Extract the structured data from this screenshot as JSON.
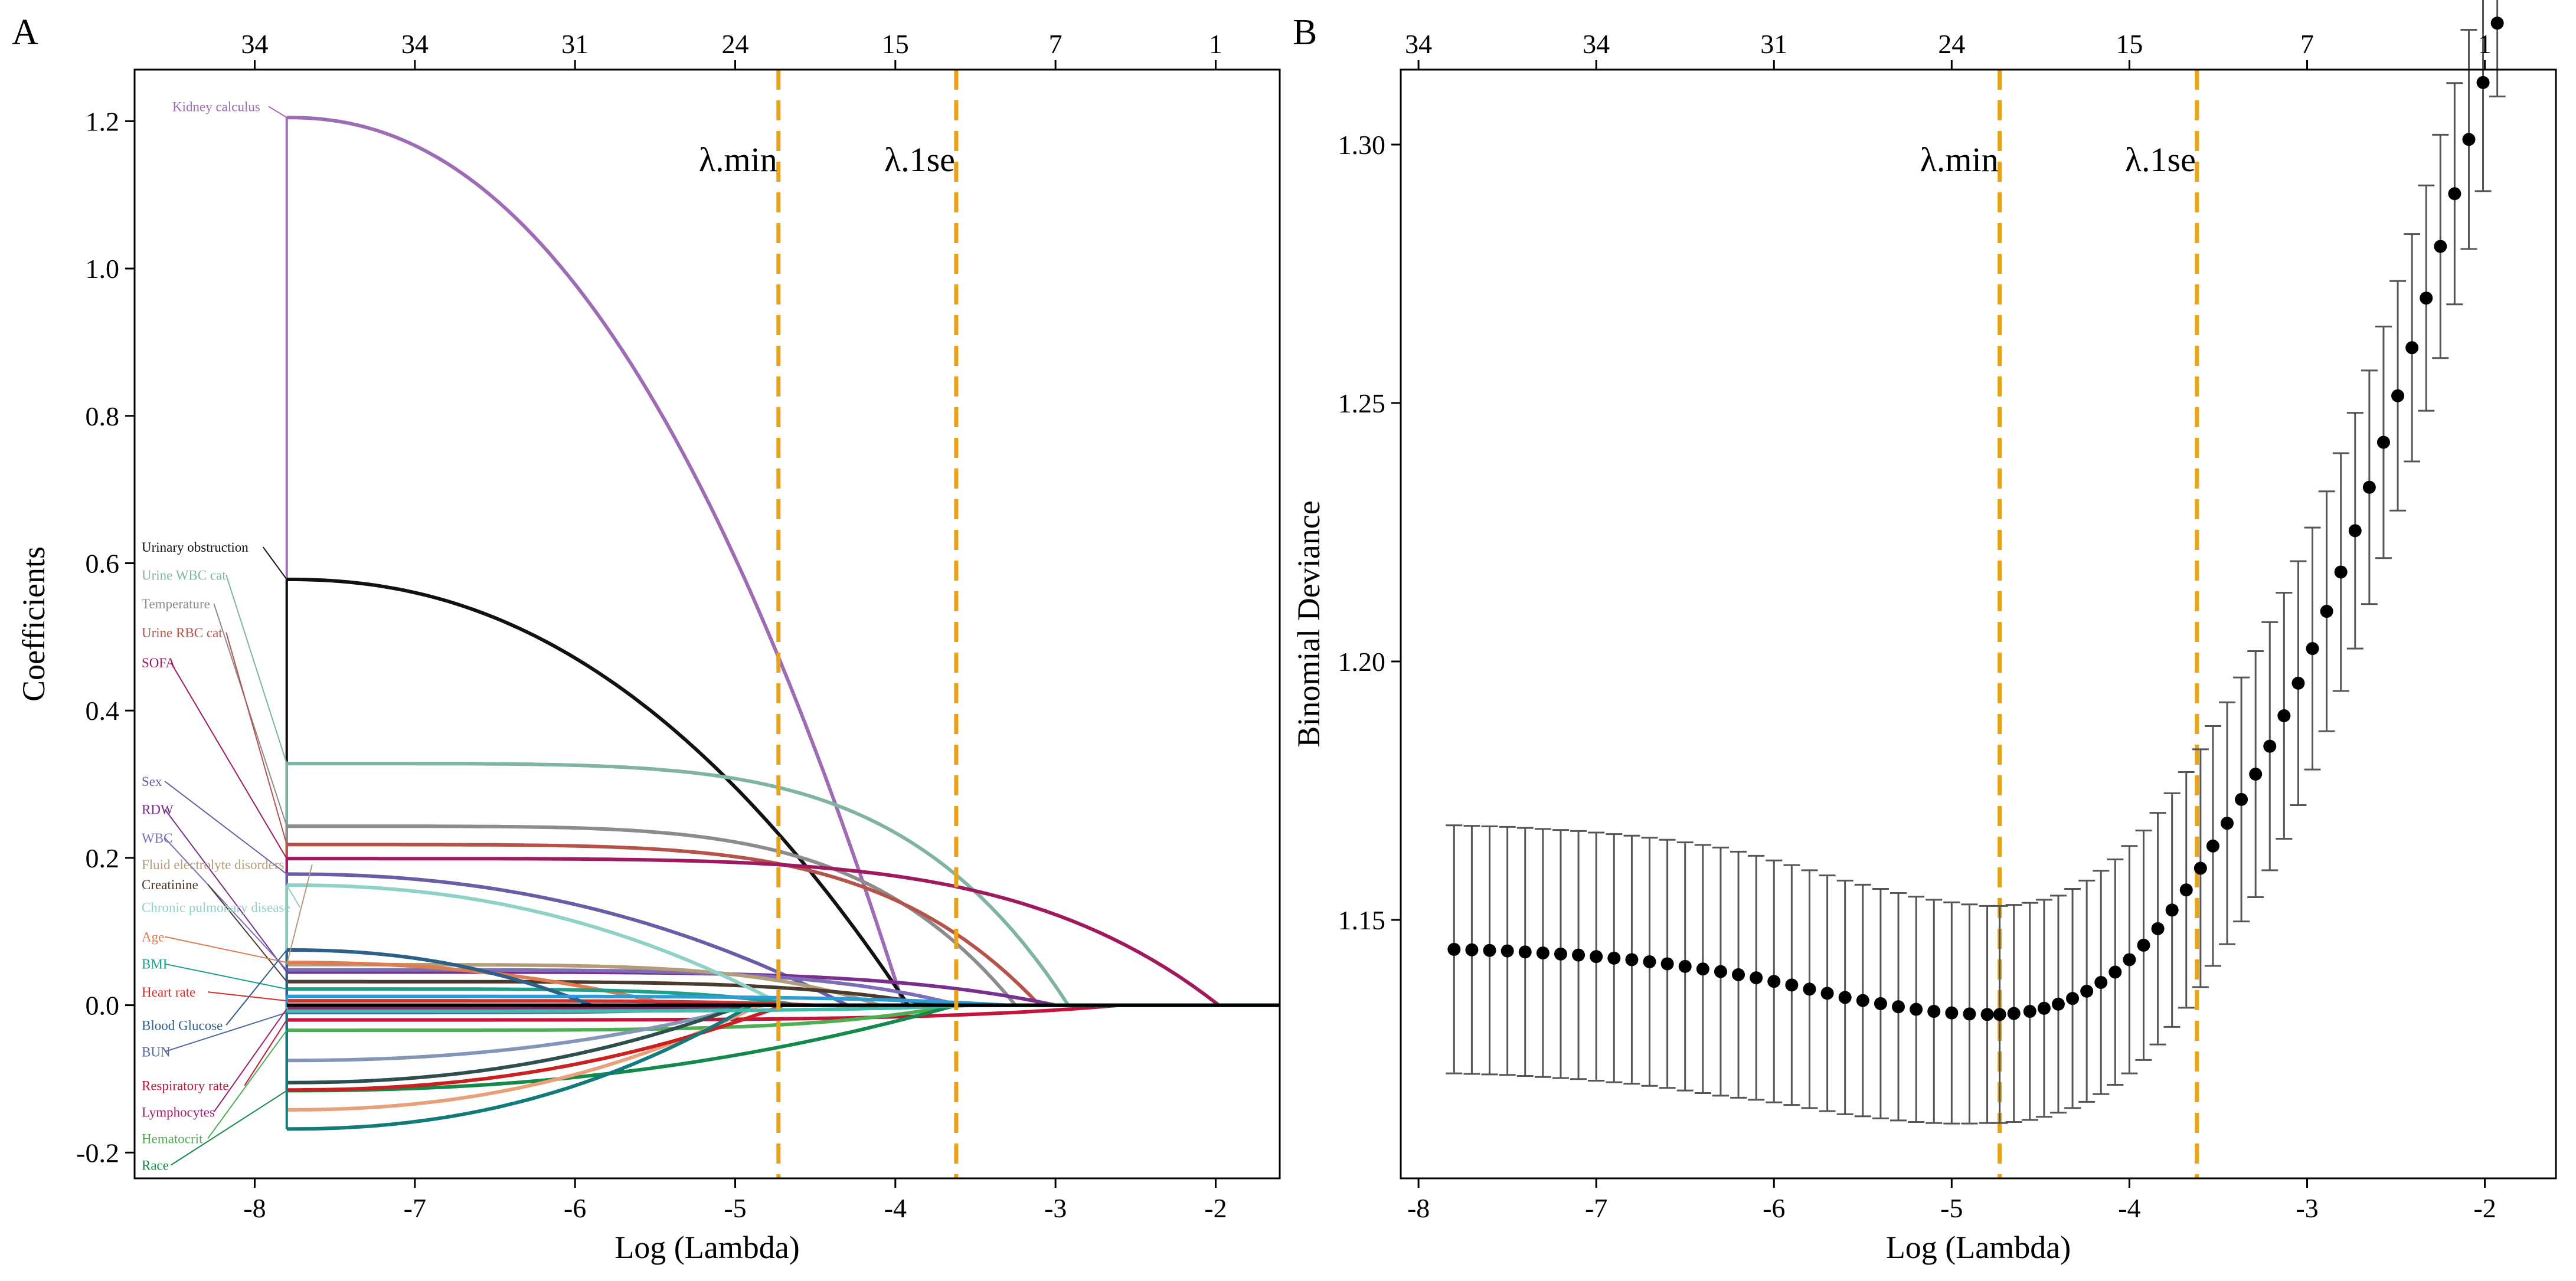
{
  "panels": {
    "a_label": "A",
    "b_label": "B"
  },
  "colors": {
    "lambda_line": "#E8A317",
    "axis": "#000000",
    "errorbar": "#555555",
    "point": "#000000"
  },
  "chart_data": [
    {
      "type": "line",
      "panel": "A",
      "title": "",
      "xlabel": "Log (Lambda)",
      "ylabel": "Coefficients",
      "xlim": [
        -8.75,
        -1.6
      ],
      "ylim": [
        -0.235,
        1.27
      ],
      "x_ticks": [
        -8,
        -7,
        -6,
        -5,
        -4,
        -3,
        -2
      ],
      "x_tick_labels": [
        "-8",
        "-7",
        "-6",
        "-5",
        "-4",
        "-3",
        "-2"
      ],
      "y_ticks": [
        -0.2,
        0.0,
        0.2,
        0.4,
        0.6,
        0.8,
        1.0,
        1.2
      ],
      "y_tick_labels": [
        "-0.2",
        "0.0",
        "0.2",
        "0.4",
        "0.6",
        "0.8",
        "1.0",
        "1.2"
      ],
      "top_ticks": [
        -8,
        -7,
        -6,
        -5,
        -4,
        -3,
        -2
      ],
      "top_tick_labels": [
        "34",
        "34",
        "31",
        "24",
        "15",
        "7",
        "1"
      ],
      "lambda_min": -4.73,
      "lambda_1se": -3.62,
      "lambda_min_label": "λ.min",
      "lambda_1se_label": "λ.1se",
      "x_start": -7.8,
      "x_end": -1.6,
      "series": [
        {
          "name": "Kidney calculus",
          "color": "#9E6BB5",
          "y0": 1.205,
          "x_zero": -3.95,
          "shape": "curve"
        },
        {
          "name": "Urinary obstruction",
          "color": "#111111",
          "y0": 0.578,
          "x_zero": -3.92,
          "shape": "curve"
        },
        {
          "name": "Urine WBC cat",
          "color": "#7FB59E",
          "y0": 0.328,
          "x_zero": -2.92,
          "shape": "flat"
        },
        {
          "name": "Temperature",
          "color": "#8C8C8C",
          "y0": 0.243,
          "x_zero": -3.25,
          "shape": "flat"
        },
        {
          "name": "Urine RBC cat",
          "color": "#B5524A",
          "y0": 0.218,
          "x_zero": -3.1,
          "shape": "flat"
        },
        {
          "name": "SOFA",
          "color": "#A0185E",
          "y0": 0.199,
          "x_zero": -1.98,
          "shape": "flat"
        },
        {
          "name": "Sex",
          "color": "#6A5DA8",
          "y0": 0.178,
          "x_zero": -4.3,
          "shape": "curve"
        },
        {
          "name": "RDW",
          "color": "#7A2F8E",
          "y0": 0.045,
          "x_zero": -3.0,
          "shape": "flat"
        },
        {
          "name": "WBC",
          "color": "#7C6DB8",
          "y0": 0.048,
          "x_zero": -3.6,
          "shape": "flat"
        },
        {
          "name": "Fluid electrolyte disorders",
          "color": "#B39C7A",
          "y0": 0.055,
          "x_zero": -4.1,
          "shape": "flat"
        },
        {
          "name": "Creatinine",
          "color": "#4A3B2E",
          "y0": 0.032,
          "x_zero": -3.75,
          "shape": "flat"
        },
        {
          "name": "Chronic pulmonary disease",
          "color": "#8ED1C6",
          "y0": 0.163,
          "x_zero": -4.7,
          "shape": "curve"
        },
        {
          "name": "Age",
          "color": "#E07A4F",
          "y0": 0.058,
          "x_zero": -5.4,
          "shape": "curve"
        },
        {
          "name": "BMI",
          "color": "#1F9E89",
          "y0": 0.022,
          "x_zero": -4.6,
          "shape": "flat"
        },
        {
          "name": "Heart rate",
          "color": "#D02F2F",
          "y0": 0.006,
          "x_zero": -4.5,
          "shape": "flat"
        },
        {
          "name": "Blood Glucose",
          "color": "#2C5F8A",
          "y0": 0.075,
          "x_zero": -5.9,
          "shape": "curve"
        },
        {
          "name": "BUN",
          "color": "#4F6AA0",
          "y0": -0.01,
          "x_zero": -4.8,
          "shape": "flat"
        },
        {
          "name": "Respiratory rate",
          "color": "#C4143C",
          "y0": -0.02,
          "x_zero": -2.6,
          "shape": "flat"
        },
        {
          "name": "Lymphocytes",
          "color": "#9C1F6E",
          "y0": -0.005,
          "x_zero": -4.9,
          "shape": "flat"
        },
        {
          "name": "Hematocrit",
          "color": "#4CAF50",
          "y0": -0.034,
          "x_zero": -3.62,
          "shape": "flat"
        },
        {
          "name": "Race",
          "color": "#138A4A",
          "y0": -0.116,
          "x_zero": -3.62,
          "shape": "curve"
        },
        {
          "name": "",
          "color": "#8496B8",
          "y0": -0.075,
          "x_zero": -4.9,
          "shape": "curve"
        },
        {
          "name": "",
          "color": "#2F4F4F",
          "y0": -0.105,
          "x_zero": -4.95,
          "shape": "curve"
        },
        {
          "name": "",
          "color": "#E8A07A",
          "y0": -0.142,
          "x_zero": -4.85,
          "shape": "curve"
        },
        {
          "name": "",
          "color": "#CC2020",
          "y0": -0.115,
          "x_zero": -4.7,
          "shape": "curve"
        },
        {
          "name": "",
          "color": "#117A7A",
          "y0": -0.168,
          "x_zero": -4.9,
          "shape": "curve"
        },
        {
          "name": "",
          "color": "#2A9DD6",
          "y0": 0.012,
          "x_zero": -3.3,
          "shape": "flat"
        },
        {
          "name": "",
          "color": "#3DBFAE",
          "y0": -0.008,
          "x_zero": -3.5,
          "shape": "flat"
        }
      ],
      "labels": [
        {
          "text": "Kidney calculus",
          "color": "#9E6BB5",
          "y": 1.22
        },
        {
          "text": "Urinary obstruction",
          "color": "#111111",
          "y": 0.622
        },
        {
          "text": "Urine WBC cat",
          "color": "#7FB59E",
          "y": 0.584
        },
        {
          "text": "Temperature",
          "color": "#8C8C8C",
          "y": 0.545
        },
        {
          "text": "Urine RBC cat",
          "color": "#B5524A",
          "y": 0.506
        },
        {
          "text": "SOFA",
          "color": "#A0185E",
          "y": 0.465
        },
        {
          "text": "Sex",
          "color": "#6A5DA8",
          "y": 0.304
        },
        {
          "text": "RDW",
          "color": "#7A2F8E",
          "y": 0.266
        },
        {
          "text": "WBC",
          "color": "#7C6DB8",
          "y": 0.227
        },
        {
          "text": "Fluid electrolyte disorders",
          "color": "#B39C7A",
          "y": 0.191
        },
        {
          "text": "Creatinine",
          "color": "#4A3B2E",
          "y": 0.164
        },
        {
          "text": "Chronic pulmonary disease",
          "color": "#8ED1C6",
          "y": 0.133
        },
        {
          "text": "Age",
          "color": "#E07A4F",
          "y": 0.093
        },
        {
          "text": "BMI",
          "color": "#1F9E89",
          "y": 0.056
        },
        {
          "text": "Heart rate",
          "color": "#D02F2F",
          "y": 0.018
        },
        {
          "text": "Blood Glucose",
          "color": "#2C5F8A",
          "y": -0.027
        },
        {
          "text": "BUN",
          "color": "#4F6AA0",
          "y": -0.063
        },
        {
          "text": "Respiratory rate",
          "color": "#C4143C",
          "y": -0.109
        },
        {
          "text": "Lymphocytes",
          "color": "#9C1F6E",
          "y": -0.145
        },
        {
          "text": "Hematocrit",
          "color": "#4CAF50",
          "y": -0.181
        },
        {
          "text": "Race",
          "color": "#138A4A",
          "y": -0.217
        }
      ]
    },
    {
      "type": "scatter",
      "panel": "B",
      "title": "",
      "xlabel": "Log (Lambda)",
      "ylabel": "Binomial Deviance",
      "xlim": [
        -8.1,
        -1.6
      ],
      "ylim": [
        1.1,
        1.3145
      ],
      "x_ticks": [
        -8,
        -7,
        -6,
        -5,
        -4,
        -3,
        -2
      ],
      "x_tick_labels": [
        "-8",
        "-7",
        "-6",
        "-5",
        "-4",
        "-3",
        "-2"
      ],
      "y_ticks": [
        1.15,
        1.2,
        1.25,
        1.3
      ],
      "y_tick_labels": [
        "1.15",
        "1.20",
        "1.25",
        "1.30"
      ],
      "top_ticks": [
        -8,
        -7,
        -6,
        -5,
        -4,
        -3,
        -2
      ],
      "top_tick_labels": [
        "34",
        "34",
        "31",
        "24",
        "15",
        "7",
        "1"
      ],
      "lambda_min": -4.73,
      "lambda_1se": -3.62,
      "lambda_min_label": "λ.min",
      "lambda_1se_label": "λ.1se",
      "x": [
        -7.8,
        -7.7,
        -7.6,
        -7.5,
        -7.4,
        -7.3,
        -7.2,
        -7.1,
        -7.0,
        -6.9,
        -6.8,
        -6.7,
        -6.6,
        -6.5,
        -6.4,
        -6.3,
        -6.2,
        -6.1,
        -6.0,
        -5.9,
        -5.8,
        -5.7,
        -5.6,
        -5.5,
        -5.4,
        -5.3,
        -5.2,
        -5.1,
        -5.0,
        -4.9,
        -4.8,
        -4.73,
        -4.65,
        -4.56,
        -4.48,
        -4.4,
        -4.32,
        -4.24,
        -4.16,
        -4.08,
        -4.0,
        -3.92,
        -3.84,
        -3.76,
        -3.68,
        -3.6,
        -3.53,
        -3.45,
        -3.37,
        -3.29,
        -3.21,
        -3.13,
        -3.05,
        -2.97,
        -2.89,
        -2.81,
        -2.73,
        -2.65,
        -2.57,
        -2.49,
        -2.41,
        -2.33,
        -2.25,
        -2.17,
        -2.09,
        -2.01,
        -1.93
      ],
      "y": [
        1.1443,
        1.1442,
        1.1441,
        1.144,
        1.1438,
        1.1436,
        1.1434,
        1.1432,
        1.1429,
        1.1426,
        1.1423,
        1.1419,
        1.1415,
        1.141,
        1.1405,
        1.14,
        1.1394,
        1.1388,
        1.1381,
        1.1374,
        1.1366,
        1.1358,
        1.135,
        1.1344,
        1.1338,
        1.1332,
        1.1327,
        1.1323,
        1.132,
        1.1318,
        1.1317,
        1.1317,
        1.1319,
        1.1323,
        1.1329,
        1.1337,
        1.1348,
        1.1362,
        1.1379,
        1.1399,
        1.1423,
        1.1451,
        1.1483,
        1.1519,
        1.1558,
        1.16,
        1.1643,
        1.1687,
        1.1733,
        1.1782,
        1.1836,
        1.1895,
        1.1958,
        1.2025,
        1.2097,
        1.2173,
        1.2253,
        1.2337,
        1.2424,
        1.2514,
        1.2607,
        1.2703,
        1.2803,
        1.2905,
        1.301,
        1.312,
        1.3235
      ],
      "err": [
        0.024,
        0.024,
        0.024,
        0.024,
        0.024,
        0.024,
        0.024,
        0.024,
        0.024,
        0.024,
        0.024,
        0.024,
        0.024,
        0.024,
        0.024,
        0.024,
        0.0238,
        0.0236,
        0.0234,
        0.0232,
        0.023,
        0.0228,
        0.0226,
        0.0224,
        0.0222,
        0.022,
        0.0218,
        0.0216,
        0.0214,
        0.0212,
        0.021,
        0.021,
        0.021,
        0.021,
        0.021,
        0.021,
        0.0212,
        0.0214,
        0.0216,
        0.0218,
        0.022,
        0.0222,
        0.0224,
        0.0226,
        0.0228,
        0.023,
        0.0232,
        0.0234,
        0.0236,
        0.0238,
        0.024,
        0.0238,
        0.0236,
        0.0234,
        0.0232,
        0.023,
        0.0228,
        0.0226,
        0.0224,
        0.0222,
        0.022,
        0.0218,
        0.0216,
        0.0214,
        0.0212,
        0.021,
        0.0142
      ]
    }
  ]
}
